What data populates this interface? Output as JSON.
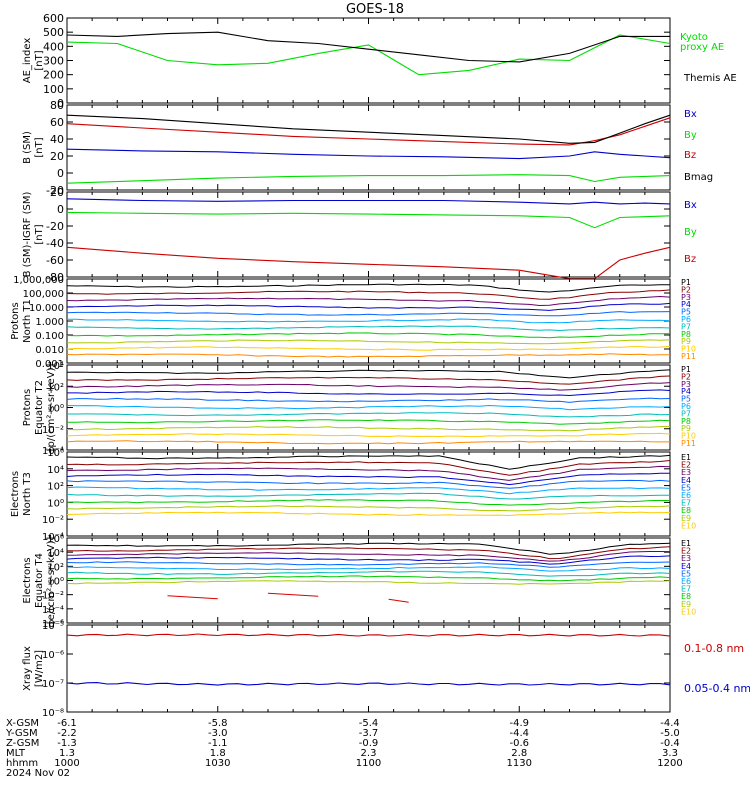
{
  "title": "GOES-18",
  "colors": {
    "black": "#000000",
    "green": "#00dd00",
    "blue": "#0000cc",
    "red": "#cc0000",
    "xray_red": "#cc0000",
    "xray_blue": "#0000cc",
    "channel": [
      "#000000",
      "#880000",
      "#6a006a",
      "#0000cc",
      "#0066ff",
      "#00aaff",
      "#00bbbb",
      "#00cc00",
      "#aacc00",
      "#ffcc00",
      "#ff8800",
      "#dd0000",
      "#990000"
    ]
  },
  "chart_data": [
    {
      "type": "line",
      "panel": "ae_index",
      "ylabel": "AE_index [nT]",
      "ylim": [
        0,
        600
      ],
      "yticks": [
        "0",
        "100",
        "200",
        "300",
        "400",
        "500",
        "600"
      ],
      "grid": false,
      "legend": [
        "Kyoto proxy AE",
        "Themis AE"
      ],
      "x": [
        "1000",
        "1010",
        "1020",
        "1030",
        "1040",
        "1050",
        "1100",
        "1110",
        "1120",
        "1130",
        "1140",
        "1150",
        "1200"
      ],
      "series": [
        {
          "name": "Kyoto proxy AE",
          "color": "green",
          "values": [
            430,
            420,
            300,
            270,
            280,
            350,
            410,
            200,
            230,
            310,
            300,
            480,
            420
          ]
        },
        {
          "name": "Themis AE",
          "color": "black",
          "values": [
            480,
            470,
            490,
            500,
            440,
            420,
            380,
            340,
            300,
            290,
            350,
            470,
            470
          ]
        }
      ]
    },
    {
      "type": "line",
      "panel": "b_sm",
      "ylabel": "B (SM) [nT]",
      "ylim": [
        -20,
        80
      ],
      "yticks": [
        "-20",
        "0",
        "20",
        "40",
        "60",
        "80"
      ],
      "legend": [
        "Bx",
        "By",
        "Bz",
        "Bmag"
      ],
      "x": [
        "1000",
        "1015",
        "1030",
        "1045",
        "1100",
        "1115",
        "1130",
        "1140",
        "1145",
        "1150",
        "1155",
        "1200"
      ],
      "series": [
        {
          "name": "Bx",
          "color": "blue",
          "values": [
            28,
            26,
            25,
            22,
            20,
            19,
            17,
            20,
            25,
            22,
            20,
            18
          ]
        },
        {
          "name": "By",
          "color": "green",
          "values": [
            -12,
            -9,
            -6,
            -4,
            -3,
            -3,
            -2,
            -3,
            -10,
            -5,
            -4,
            -3
          ]
        },
        {
          "name": "Bz",
          "color": "red",
          "values": [
            58,
            53,
            48,
            43,
            40,
            37,
            34,
            33,
            38,
            45,
            55,
            65
          ]
        },
        {
          "name": "Bmag",
          "color": "black",
          "values": [
            68,
            64,
            58,
            52,
            48,
            44,
            40,
            35,
            36,
            47,
            58,
            68
          ]
        }
      ]
    },
    {
      "type": "line",
      "panel": "b_minus_igrf",
      "ylabel": "B (SM)-IGRF (SM) [nT]",
      "ylim": [
        -80,
        20
      ],
      "yticks": [
        "-80",
        "-60",
        "-40",
        "-20",
        "0",
        "20"
      ],
      "legend": [
        "Bx",
        "By",
        "Bz"
      ],
      "x": [
        "1000",
        "1015",
        "1030",
        "1045",
        "1100",
        "1115",
        "1130",
        "1140",
        "1145",
        "1150",
        "1155",
        "1200"
      ],
      "series": [
        {
          "name": "Bx",
          "color": "blue",
          "values": [
            12,
            10,
            9,
            10,
            10,
            10,
            8,
            6,
            8,
            6,
            7,
            6
          ]
        },
        {
          "name": "By",
          "color": "green",
          "values": [
            -4,
            -5,
            -6,
            -5,
            -6,
            -7,
            -8,
            -10,
            -22,
            -10,
            -9,
            -8
          ]
        },
        {
          "name": "Bz",
          "color": "red",
          "values": [
            -45,
            -52,
            -58,
            -62,
            -65,
            -68,
            -72,
            -82,
            -82,
            -60,
            -52,
            -45
          ]
        }
      ]
    },
    {
      "type": "line",
      "panel": "protons_north_t1",
      "ylabel": "Protons North T1",
      "ylim": [
        "0.001",
        "1,000,000"
      ],
      "yticks": [
        "0.001",
        "0.010",
        "0.100",
        "1.000",
        "10.000",
        "100,000",
        "1,000,000"
      ],
      "legend": [
        "P1",
        "P2",
        "P3",
        "P4",
        "P5",
        "P6",
        "P7",
        "P8",
        "P9",
        "P10",
        "P11"
      ]
    },
    {
      "type": "line",
      "panel": "protons_equator_t2",
      "ylabel": "Protons Equator T2 [p/(cm²-s-sr-keV)]",
      "yticks": [
        "10⁻⁴",
        "10⁻²",
        "10⁰",
        "10²",
        "10⁴"
      ],
      "legend": [
        "P1",
        "P2",
        "P3",
        "P4",
        "P5",
        "P6",
        "P7",
        "P8",
        "P9",
        "P10",
        "P11"
      ]
    },
    {
      "type": "line",
      "panel": "electrons_north_t3",
      "ylabel": "Electrons North T3",
      "yticks": [
        "10⁻⁴",
        "10⁻²",
        "10⁰",
        "10²",
        "10⁴",
        "10⁶"
      ],
      "legend": [
        "E1",
        "E2",
        "E3",
        "E4",
        "E5",
        "E6",
        "E7",
        "E8",
        "E9",
        "E10"
      ]
    },
    {
      "type": "line",
      "panel": "electrons_equator_t4",
      "ylabel": "Electrons Equator T4 [e/(cm²-s-sr-keV)]",
      "yticks": [
        "10⁻⁶",
        "10⁻⁴",
        "10⁻²",
        "10⁰",
        "10²",
        "10⁴",
        "10⁶"
      ],
      "legend": [
        "E1",
        "E2",
        "E3",
        "E4",
        "E5",
        "E6",
        "E7",
        "E8",
        "E9",
        "E10"
      ]
    },
    {
      "type": "line",
      "panel": "xray_flux",
      "ylabel": "Xray flux [W/m2]",
      "yticks": [
        "10⁻⁸",
        "10⁻⁷",
        "10⁻⁶",
        "10⁻⁵"
      ],
      "legend": [
        "0.1-0.8 nm",
        "0.05-0.4 nm"
      ],
      "x": [
        "1000",
        "1030",
        "1100",
        "1130",
        "1200"
      ],
      "series": [
        {
          "name": "0.1-0.8 nm",
          "color": "xray_red",
          "values": [
            4.5e-06,
            4.6e-06,
            4.4e-06,
            4.5e-06,
            4.4e-06
          ]
        },
        {
          "name": "0.05-0.4 nm",
          "color": "xray_blue",
          "values": [
            1e-07,
            9e-08,
            9.5e-08,
            9e-08,
            9.2e-08
          ]
        }
      ]
    }
  ],
  "ephemeris": {
    "labels": [
      "X-GSM",
      "Y-GSM",
      "Z-GSM",
      "MLT",
      "hhmm",
      "2024 Nov 02"
    ],
    "columns": [
      {
        "x_gsm": "-6.1",
        "y_gsm": "-2.2",
        "z_gsm": "-1.3",
        "mlt": "1.3",
        "hhmm": "1000"
      },
      {
        "x_gsm": "-5.8",
        "y_gsm": "-3.0",
        "z_gsm": "-1.1",
        "mlt": "1.8",
        "hhmm": "1030"
      },
      {
        "x_gsm": "-5.4",
        "y_gsm": "-3.7",
        "z_gsm": "-0.9",
        "mlt": "2.3",
        "hhmm": "1100"
      },
      {
        "x_gsm": "-4.9",
        "y_gsm": "-4.4",
        "z_gsm": "-0.6",
        "mlt": "2.8",
        "hhmm": "1130"
      },
      {
        "x_gsm": "-4.4",
        "y_gsm": "-5.0",
        "z_gsm": "-0.4",
        "mlt": "3.3",
        "hhmm": "1200"
      }
    ]
  }
}
